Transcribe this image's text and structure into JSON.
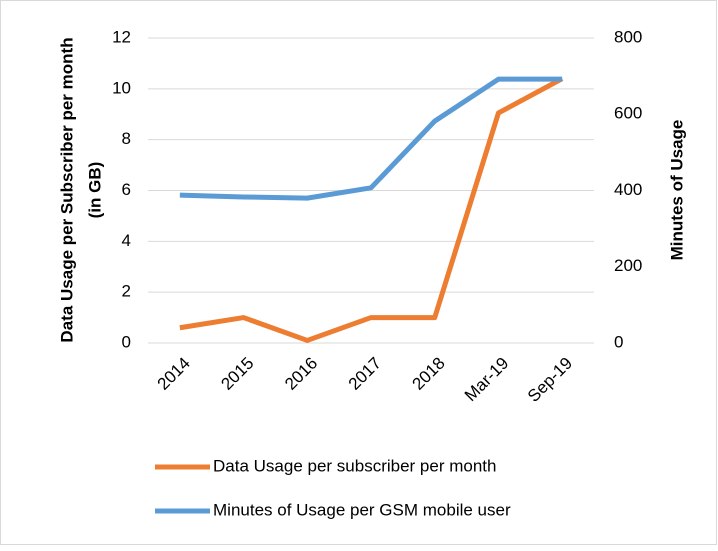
{
  "chart_data": {
    "type": "line",
    "categories": [
      "2014",
      "2015",
      "2016",
      "2017",
      "2018",
      "Mar-19",
      "Sep-19"
    ],
    "series": [
      {
        "name": "Data Usage per subscriber per month",
        "color": "#ed7d31",
        "values": [
          0.6,
          1.0,
          0.1,
          1.0,
          1.0,
          9.05,
          10.4
        ]
      },
      {
        "name": "Minutes of Usage per GSM mobile user",
        "color": "#5b9bd5",
        "axis": "y2",
        "values": [
          388,
          383,
          380,
          407,
          582,
          692,
          692
        ]
      }
    ],
    "ylabel": [
      "Data Usage per Subscriber per month",
      "(in GB)"
    ],
    "y2label": "Minutes of Usage",
    "ylim": [
      0,
      12
    ],
    "yticks": [
      0,
      2,
      4,
      6,
      8,
      10,
      12
    ],
    "y2lim": [
      0,
      800
    ],
    "y2ticks": [
      0,
      200,
      400,
      600,
      800
    ],
    "grid": true,
    "legend": "bottom"
  }
}
